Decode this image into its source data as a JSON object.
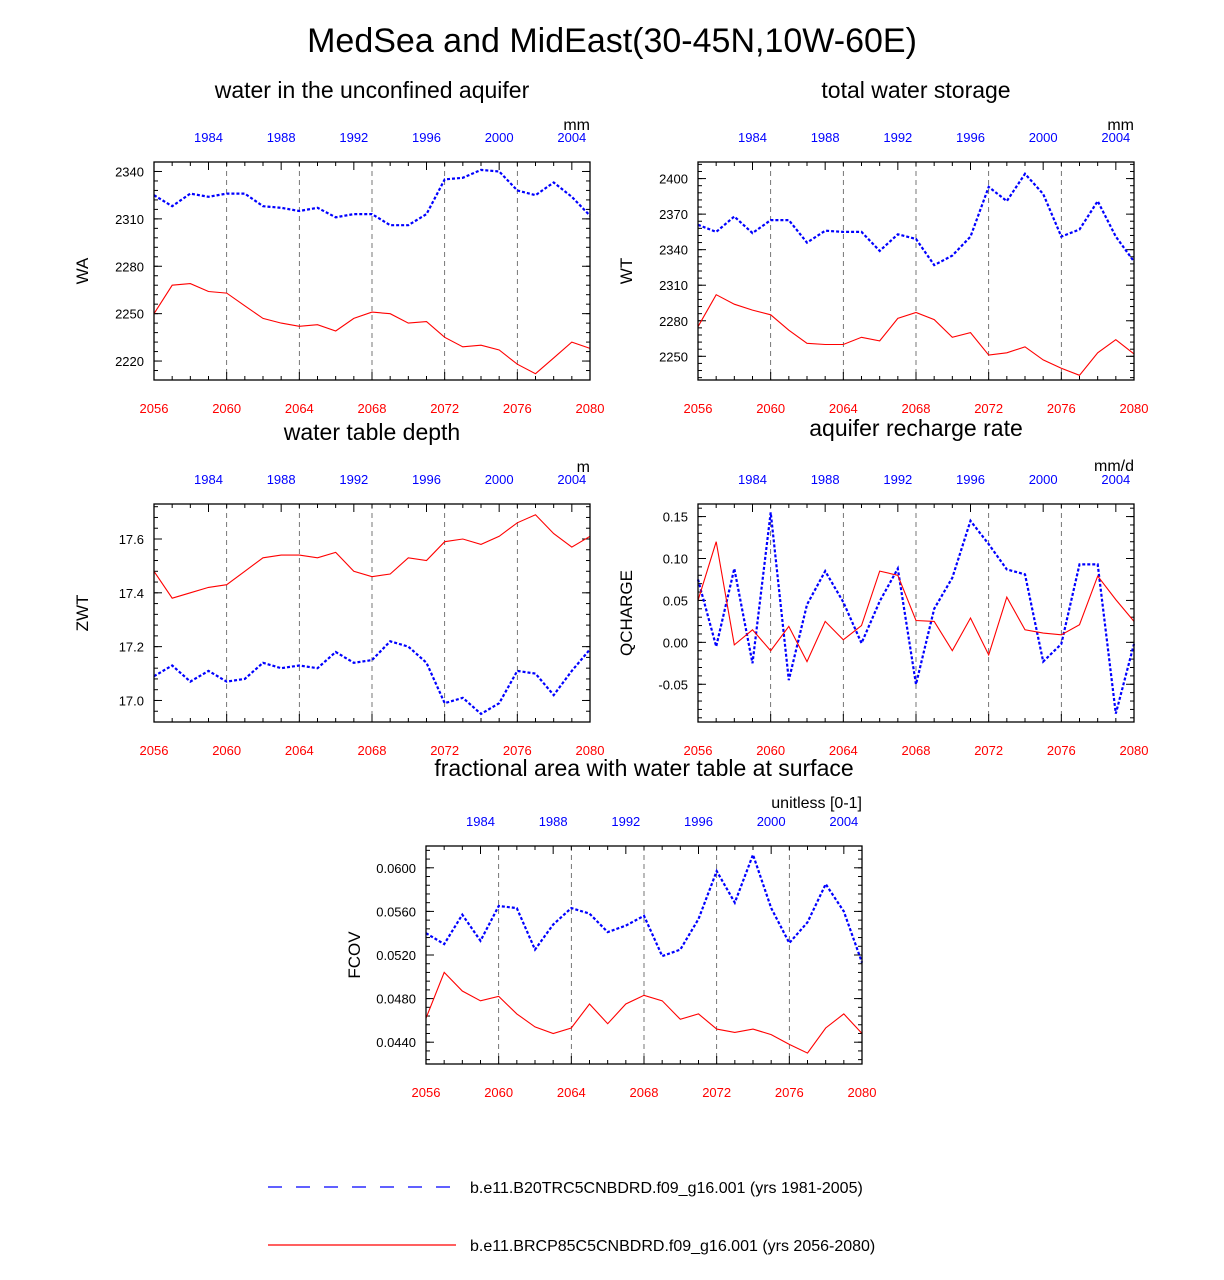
{
  "figure_title": "MedSea and MidEast(30-45N,10W-60E)",
  "legend": [
    {
      "label": "b.e11.B20TRC5CNBDRD.f09_g16.001 (yrs 1981-2005)",
      "color": "#0000ff",
      "style": "dashed"
    },
    {
      "label": "b.e11.BRCP85C5CNBDRD.f09_g16.001 (yrs 2056-2080)",
      "color": "#ff0000",
      "style": "solid"
    }
  ],
  "colors": {
    "historical": "#0000ff",
    "future": "#ff0000",
    "grid": "#555555"
  },
  "chart_data": [
    {
      "type": "line",
      "title": "water in the unconfined aquifer",
      "ylabel": "WA",
      "units": "mm",
      "x_bottom": [
        2056,
        2057,
        2058,
        2059,
        2060,
        2061,
        2062,
        2063,
        2064,
        2065,
        2066,
        2067,
        2068,
        2069,
        2070,
        2071,
        2072,
        2073,
        2074,
        2075,
        2076,
        2077,
        2078,
        2079,
        2080
      ],
      "x_top": [
        1981,
        1982,
        1983,
        1984,
        1985,
        1986,
        1987,
        1988,
        1989,
        1990,
        1991,
        1992,
        1993,
        1994,
        1995,
        1996,
        1997,
        1998,
        1999,
        2000,
        2001,
        2002,
        2003,
        2004,
        2005
      ],
      "xlim": [
        2056,
        2080
      ],
      "bottom_ticks": [
        "2056",
        "2060",
        "2064",
        "2068",
        "2072",
        "2076",
        "2080"
      ],
      "top_ticks": [
        "1984",
        "1988",
        "1992",
        "1996",
        "2000",
        "2004"
      ],
      "ylim": [
        2208,
        2346
      ],
      "yticks": [
        2220,
        2250,
        2280,
        2310,
        2340
      ],
      "ytick_labels": [
        "2220",
        "2250",
        "2280",
        "2310",
        "2340"
      ],
      "series": [
        {
          "name": "b.e11.B20TRC5CNBDRD.f09_g16.001 (yrs 1981-2005)",
          "values": [
            2325,
            2318,
            2326,
            2324,
            2326,
            2326,
            2318,
            2317,
            2315,
            2317,
            2311,
            2313,
            2313,
            2306,
            2306,
            2313,
            2335,
            2336,
            2341,
            2340,
            2328,
            2325,
            2333,
            2324,
            2312
          ]
        },
        {
          "name": "b.e11.BRCP85C5CNBDRD.f09_g16.001 (yrs 2056-2080)",
          "values": [
            2250,
            2268,
            2269,
            2264,
            2263,
            2255,
            2247,
            2244,
            2242,
            2243,
            2239,
            2247,
            2251,
            2250,
            2244,
            2245,
            2235,
            2229,
            2230,
            2227,
            2218,
            2212,
            2222,
            2232,
            2228
          ]
        }
      ]
    },
    {
      "type": "line",
      "title": "total water storage",
      "ylabel": "WT",
      "units": "mm",
      "x_bottom": [
        2056,
        2057,
        2058,
        2059,
        2060,
        2061,
        2062,
        2063,
        2064,
        2065,
        2066,
        2067,
        2068,
        2069,
        2070,
        2071,
        2072,
        2073,
        2074,
        2075,
        2076,
        2077,
        2078,
        2079,
        2080
      ],
      "x_top": [
        1981,
        1982,
        1983,
        1984,
        1985,
        1986,
        1987,
        1988,
        1989,
        1990,
        1991,
        1992,
        1993,
        1994,
        1995,
        1996,
        1997,
        1998,
        1999,
        2000,
        2001,
        2002,
        2003,
        2004,
        2005
      ],
      "xlim": [
        2056,
        2080
      ],
      "bottom_ticks": [
        "2056",
        "2060",
        "2064",
        "2068",
        "2072",
        "2076",
        "2080"
      ],
      "top_ticks": [
        "1984",
        "1988",
        "1992",
        "1996",
        "2000",
        "2004"
      ],
      "ylim": [
        2230,
        2414
      ],
      "yticks": [
        2250,
        2280,
        2310,
        2340,
        2370,
        2400
      ],
      "ytick_labels": [
        "2250",
        "2280",
        "2310",
        "2340",
        "2370",
        "2400"
      ],
      "series": [
        {
          "name": "b.e11.B20TRC5CNBDRD.f09_g16.001 (yrs 1981-2005)",
          "values": [
            2361,
            2355,
            2368,
            2354,
            2365,
            2365,
            2346,
            2356,
            2355,
            2355,
            2339,
            2353,
            2349,
            2327,
            2335,
            2351,
            2393,
            2381,
            2404,
            2387,
            2351,
            2357,
            2381,
            2351,
            2330
          ]
        },
        {
          "name": "b.e11.BRCP85C5CNBDRD.f09_g16.001 (yrs 2056-2080)",
          "values": [
            2275,
            2302,
            2294,
            2289,
            2285,
            2272,
            2261,
            2260,
            2260,
            2266,
            2263,
            2282,
            2287,
            2281,
            2266,
            2270,
            2251,
            2253,
            2258,
            2247,
            2240,
            2234,
            2253,
            2264,
            2252
          ]
        }
      ]
    },
    {
      "type": "line",
      "title": "water table depth",
      "ylabel": "ZWT",
      "units": "m",
      "x_bottom": [
        2056,
        2057,
        2058,
        2059,
        2060,
        2061,
        2062,
        2063,
        2064,
        2065,
        2066,
        2067,
        2068,
        2069,
        2070,
        2071,
        2072,
        2073,
        2074,
        2075,
        2076,
        2077,
        2078,
        2079,
        2080
      ],
      "x_top": [
        1981,
        1982,
        1983,
        1984,
        1985,
        1986,
        1987,
        1988,
        1989,
        1990,
        1991,
        1992,
        1993,
        1994,
        1995,
        1996,
        1997,
        1998,
        1999,
        2000,
        2001,
        2002,
        2003,
        2004,
        2005
      ],
      "xlim": [
        2056,
        2080
      ],
      "bottom_ticks": [
        "2056",
        "2060",
        "2064",
        "2068",
        "2072",
        "2076",
        "2080"
      ],
      "top_ticks": [
        "1984",
        "1988",
        "1992",
        "1996",
        "2000",
        "2004"
      ],
      "ylim": [
        16.92,
        17.73
      ],
      "yticks": [
        17.0,
        17.2,
        17.4,
        17.6
      ],
      "ytick_labels": [
        "17.0",
        "17.2",
        "17.4",
        "17.6"
      ],
      "series": [
        {
          "name": "b.e11.B20TRC5CNBDRD.f09_g16.001 (yrs 1981-2005)",
          "values": [
            17.09,
            17.13,
            17.07,
            17.11,
            17.07,
            17.08,
            17.14,
            17.12,
            17.13,
            17.12,
            17.18,
            17.14,
            17.15,
            17.22,
            17.2,
            17.14,
            16.99,
            17.01,
            16.95,
            16.99,
            17.11,
            17.1,
            17.02,
            17.11,
            17.19
          ]
        },
        {
          "name": "b.e11.BRCP85C5CNBDRD.f09_g16.001 (yrs 2056-2080)",
          "values": [
            17.48,
            17.38,
            17.4,
            17.42,
            17.43,
            17.48,
            17.53,
            17.54,
            17.54,
            17.53,
            17.55,
            17.48,
            17.46,
            17.47,
            17.53,
            17.52,
            17.59,
            17.6,
            17.58,
            17.61,
            17.66,
            17.69,
            17.62,
            17.57,
            17.61
          ]
        }
      ]
    },
    {
      "type": "line",
      "title": "aquifer recharge rate",
      "ylabel": "QCHARGE",
      "units": "mm/d",
      "x_bottom": [
        2056,
        2057,
        2058,
        2059,
        2060,
        2061,
        2062,
        2063,
        2064,
        2065,
        2066,
        2067,
        2068,
        2069,
        2070,
        2071,
        2072,
        2073,
        2074,
        2075,
        2076,
        2077,
        2078,
        2079,
        2080
      ],
      "x_top": [
        1981,
        1982,
        1983,
        1984,
        1985,
        1986,
        1987,
        1988,
        1989,
        1990,
        1991,
        1992,
        1993,
        1994,
        1995,
        1996,
        1997,
        1998,
        1999,
        2000,
        2001,
        2002,
        2003,
        2004,
        2005
      ],
      "xlim": [
        2056,
        2080
      ],
      "bottom_ticks": [
        "2056",
        "2060",
        "2064",
        "2068",
        "2072",
        "2076",
        "2080"
      ],
      "top_ticks": [
        "1984",
        "1988",
        "1992",
        "1996",
        "2000",
        "2004"
      ],
      "ylim": [
        -0.095,
        0.165
      ],
      "yticks": [
        -0.05,
        0.0,
        0.05,
        0.1,
        0.15
      ],
      "ytick_labels": [
        "-0.05",
        "0.00",
        "0.05",
        "0.10",
        "0.15"
      ],
      "series": [
        {
          "name": "b.e11.B20TRC5CNBDRD.f09_g16.001 (yrs 1981-2005)",
          "values": [
            0.075,
            -0.005,
            0.088,
            -0.025,
            0.155,
            -0.045,
            0.045,
            0.085,
            0.048,
            -0.001,
            0.049,
            0.088,
            -0.05,
            0.04,
            0.077,
            0.145,
            0.117,
            0.087,
            0.081,
            -0.023,
            -0.002,
            0.093,
            0.093,
            -0.085,
            -0.002
          ]
        },
        {
          "name": "b.e11.BRCP85C5CNBDRD.f09_g16.001 (yrs 2056-2080)",
          "values": [
            0.05,
            0.12,
            -0.003,
            0.015,
            -0.01,
            0.019,
            -0.023,
            0.025,
            0.003,
            0.02,
            0.085,
            0.08,
            0.026,
            0.025,
            -0.01,
            0.029,
            -0.015,
            0.054,
            0.015,
            0.011,
            0.009,
            0.021,
            0.079,
            0.051,
            0.025
          ]
        }
      ]
    },
    {
      "type": "line",
      "title": "fractional area with water table at surface",
      "ylabel": "FCOV",
      "units": "unitless [0-1]",
      "x_bottom": [
        2056,
        2057,
        2058,
        2059,
        2060,
        2061,
        2062,
        2063,
        2064,
        2065,
        2066,
        2067,
        2068,
        2069,
        2070,
        2071,
        2072,
        2073,
        2074,
        2075,
        2076,
        2077,
        2078,
        2079,
        2080
      ],
      "x_top": [
        1981,
        1982,
        1983,
        1984,
        1985,
        1986,
        1987,
        1988,
        1989,
        1990,
        1991,
        1992,
        1993,
        1994,
        1995,
        1996,
        1997,
        1998,
        1999,
        2000,
        2001,
        2002,
        2003,
        2004,
        2005
      ],
      "xlim": [
        2056,
        2080
      ],
      "bottom_ticks": [
        "2056",
        "2060",
        "2064",
        "2068",
        "2072",
        "2076",
        "2080"
      ],
      "top_ticks": [
        "1984",
        "1988",
        "1992",
        "1996",
        "2000",
        "2004"
      ],
      "ylim": [
        0.042,
        0.062
      ],
      "yticks": [
        0.044,
        0.048,
        0.052,
        0.056,
        0.06
      ],
      "ytick_labels": [
        "0.0440",
        "0.0480",
        "0.0520",
        "0.0560",
        "0.0600"
      ],
      "series": [
        {
          "name": "b.e11.B20TRC5CNBDRD.f09_g16.001 (yrs 1981-2005)",
          "values": [
            0.054,
            0.053,
            0.0557,
            0.0533,
            0.0565,
            0.0563,
            0.0525,
            0.0548,
            0.0563,
            0.0558,
            0.0541,
            0.0547,
            0.0556,
            0.0519,
            0.0525,
            0.0553,
            0.0597,
            0.0568,
            0.0612,
            0.0563,
            0.0531,
            0.055,
            0.0585,
            0.056,
            0.0513
          ]
        },
        {
          "name": "b.e11.BRCP85C5CNBDRD.f09_g16.001 (yrs 2056-2080)",
          "values": [
            0.0462,
            0.0504,
            0.0487,
            0.0478,
            0.0482,
            0.0466,
            0.0454,
            0.0448,
            0.0453,
            0.0475,
            0.0457,
            0.0475,
            0.0483,
            0.0478,
            0.0461,
            0.0466,
            0.0452,
            0.0449,
            0.0452,
            0.0447,
            0.0438,
            0.043,
            0.0453,
            0.0466,
            0.0448
          ]
        }
      ]
    }
  ]
}
